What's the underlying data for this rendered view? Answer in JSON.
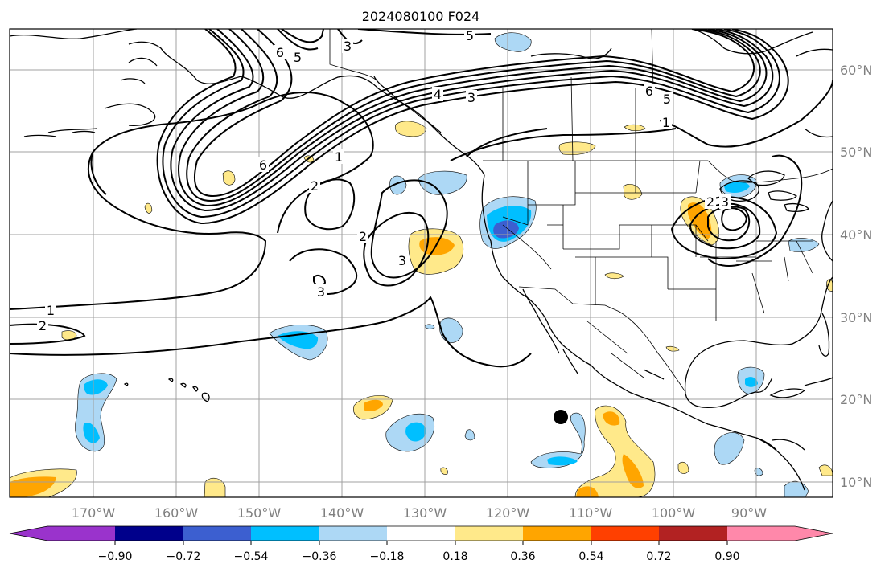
{
  "title": "2024080100 F024",
  "map": {
    "lon_labels": [
      "170°W",
      "160°W",
      "150°W",
      "140°W",
      "130°W",
      "120°W",
      "110°W",
      "100°W",
      "90°W"
    ],
    "lat_labels": [
      "60°N",
      "50°N",
      "40°N",
      "30°N",
      "20°N",
      "10°N"
    ],
    "contour_labels": [
      "6",
      "5",
      "3",
      "5",
      "4",
      "3",
      "6",
      "5",
      "1",
      "6",
      "1",
      "2",
      "2",
      "3",
      "3",
      "1",
      "2",
      "2",
      "3"
    ]
  },
  "colorbar": {
    "ticks": [
      "−0.90",
      "−0.72",
      "−0.54",
      "−0.36",
      "−0.18",
      "0.18",
      "0.36",
      "0.54",
      "0.72",
      "0.90"
    ],
    "colors": [
      "#9a33cc",
      "#00008b",
      "#3c5fd0",
      "#00bfff",
      "#add8f5",
      "#ffffff",
      "#ffe98a",
      "#ffa500",
      "#ff4000",
      "#b22222",
      "#ff88aa"
    ],
    "extend": "both"
  }
}
